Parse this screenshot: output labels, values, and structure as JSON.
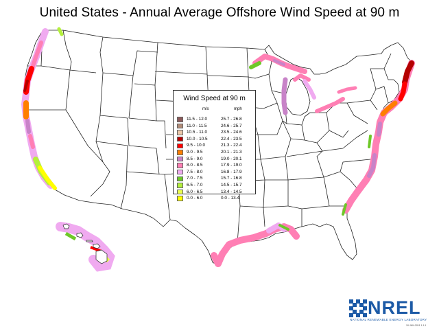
{
  "map": {
    "title": "United States - Annual Average Offshore Wind Speed at 90 m"
  },
  "legend": {
    "title": "Wind Speed at 90 m",
    "unit_ms": "m/s",
    "unit_mph": "mph",
    "classes": [
      {
        "ms": "11.5 - 12.0",
        "mph": "25.7 - 26.8",
        "color": "#8c5a5a"
      },
      {
        "ms": "11.0 - 11.5",
        "mph": "24.6 - 25.7",
        "color": "#b28c78"
      },
      {
        "ms": "10.5 - 11.0",
        "mph": "23.5 - 24.6",
        "color": "#ecc8aa"
      },
      {
        "ms": "10.0 - 10.5",
        "mph": "22.4 - 23.5",
        "color": "#b40000"
      },
      {
        "ms": "9.5 - 10.0",
        "mph": "21.3 - 22.4",
        "color": "#ff0000"
      },
      {
        "ms": "9.0 - 9.5",
        "mph": "20.1 - 21.3",
        "color": "#ff7f00"
      },
      {
        "ms": "8.5 - 9.0",
        "mph": "19.0 - 20.1",
        "color": "#c883c8"
      },
      {
        "ms": "8.0 - 8.5",
        "mph": "17.9 - 19.0",
        "color": "#ff7fb4"
      },
      {
        "ms": "7.5 - 8.0",
        "mph": "16.8 - 17.9",
        "color": "#f0aaf0"
      },
      {
        "ms": "7.0 - 7.5",
        "mph": "15.7 - 16.8",
        "color": "#6ec828"
      },
      {
        "ms": "6.5 - 7.0",
        "mph": "14.5 - 15.7",
        "color": "#b4f03c"
      },
      {
        "ms": "6.0 - 6.5",
        "mph": "13.4 - 14.5",
        "color": "#ebff50"
      },
      {
        "ms": "0.0 - 6.0",
        "mph": "0.0 - 13.4",
        "color": "#ffff00"
      }
    ]
  },
  "branding": {
    "logo_text": "NREL",
    "logo_subtitle": "NATIONAL RENEWABLE ENERGY LABORATORY",
    "document_id": "10-JUN-2011 1.1.1",
    "color": "#1c5aa6"
  }
}
